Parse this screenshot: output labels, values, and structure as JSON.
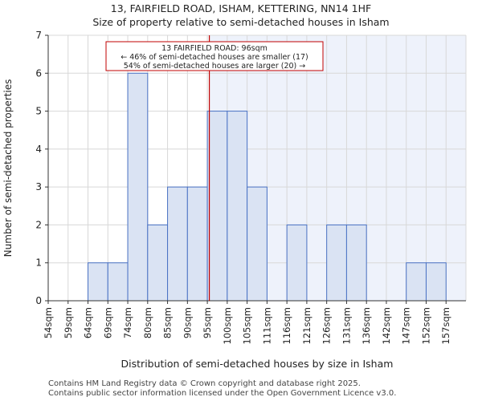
{
  "title_line1": "13, FAIRFIELD ROAD, ISHAM, KETTERING, NN14 1HF",
  "title_line2": "Size of property relative to semi-detached houses in Isham",
  "footer_line1": "Contains HM Land Registry data © Crown copyright and database right 2025.",
  "footer_line2": "Contains public sector information licensed under the Open Government Licence v3.0.",
  "colors": {
    "bar_fill": "#dae3f3",
    "bar_stroke": "#4a72c4",
    "highlight_fill": "#eef2fb",
    "marker": "#c00000",
    "grid": "#d8d8d8"
  },
  "chart_data": {
    "type": "bar",
    "xlabel": "Distribution of semi-detached houses by size in Isham",
    "ylabel": "Number of semi-detached properties",
    "ylim": [
      0,
      7
    ],
    "yticks": [
      0,
      1,
      2,
      3,
      4,
      5,
      6,
      7
    ],
    "categories": [
      "54sqm",
      "59sqm",
      "64sqm",
      "69sqm",
      "74sqm",
      "80sqm",
      "85sqm",
      "90sqm",
      "95sqm",
      "100sqm",
      "105sqm",
      "111sqm",
      "116sqm",
      "121sqm",
      "126sqm",
      "131sqm",
      "136sqm",
      "142sqm",
      "147sqm",
      "152sqm",
      "157sqm"
    ],
    "values": [
      0,
      0,
      1,
      1,
      6,
      2,
      3,
      3,
      5,
      5,
      3,
      0,
      2,
      0,
      2,
      2,
      0,
      0,
      1,
      1,
      0
    ],
    "marker": {
      "value_sqm": 96,
      "position_bins": 8.1,
      "label_line1": "13 FAIRFIELD ROAD: 96sqm",
      "label_line2": "← 46% of semi-detached houses are smaller (17)",
      "label_line3": "54% of semi-detached houses are larger (20) →"
    }
  }
}
